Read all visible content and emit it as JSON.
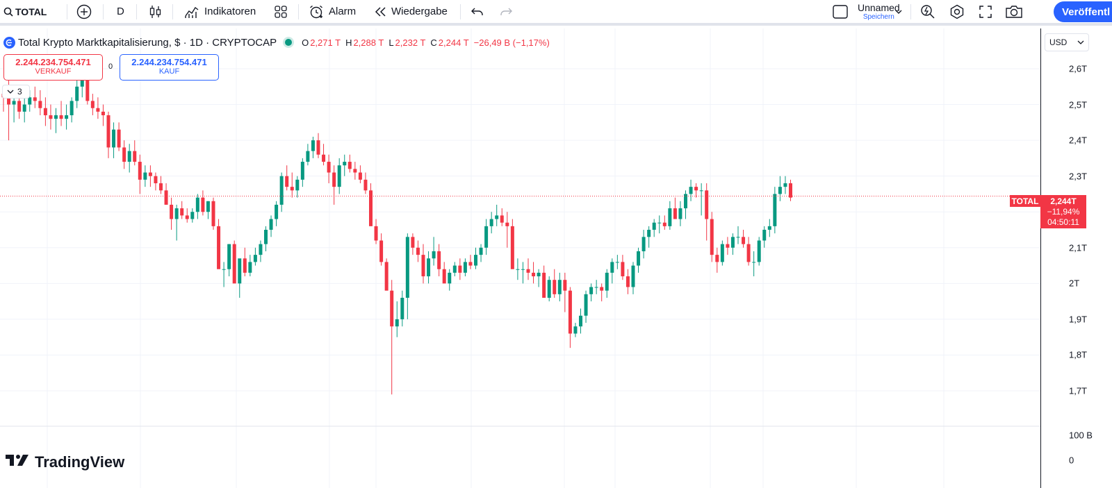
{
  "toolbar": {
    "symbol": "TOTAL",
    "interval": "D",
    "indicators_label": "Indikatoren",
    "alert_label": "Alarm",
    "replay_label": "Wiedergabe",
    "layout_name": "Unnamed",
    "save_label": "Speichern",
    "publish_label": "Veröffentl"
  },
  "legend": {
    "title": "Total Krypto Marktkapitalisierung, $ · 1D · CRYPTOCAP",
    "open_label": "O",
    "open": "2,271 T",
    "high_label": "H",
    "high": "2,288 T",
    "low_label": "L",
    "low": "2,232 T",
    "close_label": "C",
    "close": "2,244 T",
    "change": "−26,49 B (−1,17%)"
  },
  "trade": {
    "sell_price": "2.244.234.754.471",
    "sell_label": "VERKAUF",
    "buy_price": "2.244.234.754.471",
    "buy_label": "KAUF",
    "spread": "0"
  },
  "collapse_count": "3",
  "price_scale": {
    "currency": "USD",
    "ticks": [
      "2,6T",
      "2,5T",
      "2,4T",
      "2,3T",
      "2,1T",
      "2T",
      "1,9T",
      "1,8T",
      "1,7T"
    ],
    "volume_ticks": [
      "100 B",
      "0"
    ],
    "symbol_tag": "TOTAL",
    "last_price": "2,244T",
    "change_pct": "−11,94%",
    "countdown": "04:50:11"
  },
  "brand": "TradingView",
  "colors": {
    "up": "#089981",
    "down": "#f23645",
    "accent": "#2962ff",
    "grid": "#f0f3fa"
  },
  "chart_data": {
    "type": "candlestick",
    "series": [
      {
        "name": "TOTAL",
        "values": [
          [
            2.53,
            2.55,
            2.48,
            2.52
          ],
          [
            2.52,
            2.57,
            2.4,
            2.5
          ],
          [
            2.5,
            2.55,
            2.45,
            2.51
          ],
          [
            2.51,
            2.53,
            2.46,
            2.48
          ],
          [
            2.48,
            2.52,
            2.45,
            2.5
          ],
          [
            2.5,
            2.54,
            2.48,
            2.52
          ],
          [
            2.52,
            2.55,
            2.49,
            2.51
          ],
          [
            2.51,
            2.54,
            2.47,
            2.49
          ],
          [
            2.49,
            2.52,
            2.44,
            2.47
          ],
          [
            2.47,
            2.5,
            2.43,
            2.46
          ],
          [
            2.46,
            2.49,
            2.42,
            2.47
          ],
          [
            2.47,
            2.51,
            2.44,
            2.46
          ],
          [
            2.46,
            2.5,
            2.43,
            2.47
          ],
          [
            2.47,
            2.52,
            2.45,
            2.51
          ],
          [
            2.51,
            2.57,
            2.49,
            2.55
          ],
          [
            2.55,
            2.57,
            2.52,
            2.57
          ],
          [
            2.57,
            2.58,
            2.5,
            2.51
          ],
          [
            2.51,
            2.53,
            2.47,
            2.49
          ],
          [
            2.49,
            2.52,
            2.46,
            2.48
          ],
          [
            2.48,
            2.5,
            2.44,
            2.47
          ],
          [
            2.47,
            2.48,
            2.35,
            2.38
          ],
          [
            2.38,
            2.45,
            2.35,
            2.43
          ],
          [
            2.43,
            2.45,
            2.37,
            2.38
          ],
          [
            2.38,
            2.4,
            2.32,
            2.34
          ],
          [
            2.34,
            2.39,
            2.31,
            2.37
          ],
          [
            2.37,
            2.4,
            2.33,
            2.34
          ],
          [
            2.34,
            2.36,
            2.25,
            2.29
          ],
          [
            2.29,
            2.33,
            2.27,
            2.31
          ],
          [
            2.31,
            2.33,
            2.27,
            2.3
          ],
          [
            2.3,
            2.31,
            2.26,
            2.28
          ],
          [
            2.28,
            2.3,
            2.25,
            2.26
          ],
          [
            2.26,
            2.28,
            2.22,
            2.22
          ],
          [
            2.22,
            2.24,
            2.15,
            2.18
          ],
          [
            2.18,
            2.22,
            2.12,
            2.21
          ],
          [
            2.21,
            2.23,
            2.18,
            2.19
          ],
          [
            2.19,
            2.21,
            2.17,
            2.18
          ],
          [
            2.18,
            2.21,
            2.17,
            2.2
          ],
          [
            2.2,
            2.25,
            2.18,
            2.24
          ],
          [
            2.24,
            2.26,
            2.19,
            2.2
          ],
          [
            2.2,
            2.23,
            2.18,
            2.23
          ],
          [
            2.23,
            2.24,
            2.15,
            2.16
          ],
          [
            2.16,
            2.18,
            2.06,
            2.04
          ],
          [
            2.04,
            2.06,
            1.99,
            2.04
          ],
          [
            2.04,
            2.11,
            2.02,
            2.11
          ],
          [
            2.11,
            2.12,
            2.04,
            2.0
          ],
          [
            2.0,
            2.05,
            1.96,
            2.07
          ],
          [
            2.07,
            2.1,
            2.02,
            2.03
          ],
          [
            2.03,
            2.08,
            2.02,
            2.06
          ],
          [
            2.06,
            2.1,
            2.05,
            2.08
          ],
          [
            2.08,
            2.12,
            2.06,
            2.11
          ],
          [
            2.11,
            2.16,
            2.09,
            2.15
          ],
          [
            2.15,
            2.19,
            2.13,
            2.18
          ],
          [
            2.18,
            2.23,
            2.16,
            2.22
          ],
          [
            2.22,
            2.31,
            2.2,
            2.3
          ],
          [
            2.3,
            2.33,
            2.26,
            2.27
          ],
          [
            2.27,
            2.31,
            2.24,
            2.26
          ],
          [
            2.26,
            2.3,
            2.24,
            2.29
          ],
          [
            2.29,
            2.35,
            2.27,
            2.34
          ],
          [
            2.34,
            2.39,
            2.33,
            2.37
          ],
          [
            2.37,
            2.41,
            2.35,
            2.4
          ],
          [
            2.4,
            2.42,
            2.35,
            2.36
          ],
          [
            2.36,
            2.39,
            2.33,
            2.34
          ],
          [
            2.34,
            2.36,
            2.28,
            2.31
          ],
          [
            2.31,
            2.33,
            2.22,
            2.27
          ],
          [
            2.27,
            2.35,
            2.25,
            2.33
          ],
          [
            2.33,
            2.36,
            2.3,
            2.34
          ],
          [
            2.34,
            2.36,
            2.31,
            2.32
          ],
          [
            2.32,
            2.34,
            2.29,
            2.31
          ],
          [
            2.31,
            2.33,
            2.28,
            2.29
          ],
          [
            2.29,
            2.31,
            2.25,
            2.26
          ],
          [
            2.26,
            2.28,
            2.18,
            2.16
          ],
          [
            2.16,
            2.18,
            2.11,
            2.12
          ],
          [
            2.12,
            2.14,
            2.05,
            2.06
          ],
          [
            2.06,
            2.07,
            2.0,
            1.98
          ],
          [
            1.98,
            2.01,
            1.69,
            1.88
          ],
          [
            1.88,
            1.95,
            1.85,
            1.9
          ],
          [
            1.9,
            1.98,
            1.88,
            1.96
          ],
          [
            1.96,
            2.14,
            1.9,
            2.13
          ],
          [
            2.13,
            2.14,
            2.08,
            2.1
          ],
          [
            2.1,
            2.12,
            2.06,
            2.08
          ],
          [
            2.08,
            2.11,
            2.0,
            2.02
          ],
          [
            2.02,
            2.09,
            2.0,
            2.07
          ],
          [
            2.07,
            2.13,
            2.05,
            2.09
          ],
          [
            2.09,
            2.11,
            2.02,
            2.04
          ],
          [
            2.04,
            2.06,
            2.01,
            2.0
          ],
          [
            2.0,
            2.04,
            1.98,
            2.03
          ],
          [
            2.03,
            2.06,
            2.02,
            2.05
          ],
          [
            2.05,
            2.07,
            2.01,
            2.03
          ],
          [
            2.03,
            2.07,
            2.02,
            2.06
          ],
          [
            2.06,
            2.08,
            2.04,
            2.05
          ],
          [
            2.05,
            2.1,
            2.04,
            2.08
          ],
          [
            2.08,
            2.11,
            2.06,
            2.1
          ],
          [
            2.1,
            2.18,
            2.08,
            2.16
          ],
          [
            2.16,
            2.2,
            2.14,
            2.18
          ],
          [
            2.18,
            2.22,
            2.16,
            2.19
          ],
          [
            2.19,
            2.21,
            2.16,
            2.17
          ],
          [
            2.17,
            2.2,
            2.1,
            2.16
          ],
          [
            2.16,
            2.18,
            2.05,
            2.04
          ],
          [
            2.04,
            2.07,
            2.01,
            2.04
          ],
          [
            2.04,
            2.06,
            2.0,
            2.04
          ],
          [
            2.04,
            2.07,
            2.01,
            2.03
          ],
          [
            2.03,
            2.06,
            2.0,
            2.02
          ],
          [
            2.02,
            2.04,
            1.99,
            2.03
          ],
          [
            2.03,
            2.05,
            1.96,
            1.96
          ],
          [
            1.96,
            2.02,
            1.95,
            2.01
          ],
          [
            2.01,
            2.04,
            1.96,
            1.97
          ],
          [
            1.97,
            2.03,
            1.95,
            2.01
          ],
          [
            2.01,
            2.03,
            1.92,
            1.98
          ],
          [
            1.98,
            1.99,
            1.82,
            1.86
          ],
          [
            1.86,
            1.89,
            1.85,
            1.88
          ],
          [
            1.88,
            1.93,
            1.86,
            1.91
          ],
          [
            1.91,
            1.98,
            1.89,
            1.97
          ],
          [
            1.97,
            2.0,
            1.95,
            1.99
          ],
          [
            1.99,
            2.01,
            1.97,
            1.99
          ],
          [
            1.99,
            2.0,
            1.95,
            1.98
          ],
          [
            1.98,
            2.04,
            1.96,
            2.03
          ],
          [
            2.03,
            2.07,
            2.0,
            2.06
          ],
          [
            2.06,
            2.08,
            2.04,
            2.06
          ],
          [
            2.06,
            2.08,
            2.01,
            2.02
          ],
          [
            2.02,
            2.04,
            1.97,
            1.99
          ],
          [
            1.99,
            2.06,
            1.97,
            2.05
          ],
          [
            2.05,
            2.1,
            2.03,
            2.09
          ],
          [
            2.09,
            2.15,
            2.07,
            2.13
          ],
          [
            2.13,
            2.16,
            2.1,
            2.15
          ],
          [
            2.15,
            2.18,
            2.13,
            2.17
          ],
          [
            2.17,
            2.19,
            2.14,
            2.17
          ],
          [
            2.17,
            2.19,
            2.15,
            2.16
          ],
          [
            2.16,
            2.23,
            2.15,
            2.21
          ],
          [
            2.21,
            2.24,
            2.18,
            2.18
          ],
          [
            2.18,
            2.23,
            2.16,
            2.21
          ],
          [
            2.21,
            2.26,
            2.18,
            2.25
          ],
          [
            2.25,
            2.29,
            2.23,
            2.27
          ],
          [
            2.27,
            2.28,
            2.24,
            2.26
          ],
          [
            2.26,
            2.28,
            2.19,
            2.26
          ],
          [
            2.26,
            2.28,
            2.12,
            2.18
          ],
          [
            2.18,
            2.2,
            2.06,
            2.08
          ],
          [
            2.08,
            2.1,
            2.03,
            2.06
          ],
          [
            2.06,
            2.12,
            2.05,
            2.11
          ],
          [
            2.11,
            2.13,
            2.08,
            2.1
          ],
          [
            2.1,
            2.14,
            2.08,
            2.13
          ],
          [
            2.13,
            2.16,
            2.11,
            2.13
          ],
          [
            2.13,
            2.15,
            2.1,
            2.11
          ],
          [
            2.11,
            2.13,
            2.05,
            2.06
          ],
          [
            2.06,
            2.09,
            2.02,
            2.06
          ],
          [
            2.06,
            2.13,
            2.05,
            2.12
          ],
          [
            2.12,
            2.16,
            2.1,
            2.15
          ],
          [
            2.15,
            2.18,
            2.13,
            2.16
          ],
          [
            2.16,
            2.27,
            2.14,
            2.25
          ],
          [
            2.25,
            2.3,
            2.23,
            2.27
          ],
          [
            2.27,
            2.3,
            2.25,
            2.28
          ],
          [
            2.28,
            2.29,
            2.23,
            2.24
          ]
        ],
        "value_format": "[open, high, low, close] in trillions USD"
      }
    ],
    "ylim": [
      1.62,
      2.68
    ],
    "y_ticks": [
      2.6,
      2.5,
      2.4,
      2.3,
      2.1,
      2.0,
      1.9,
      1.8,
      1.7
    ],
    "last_price": 2.244,
    "grid": true
  }
}
